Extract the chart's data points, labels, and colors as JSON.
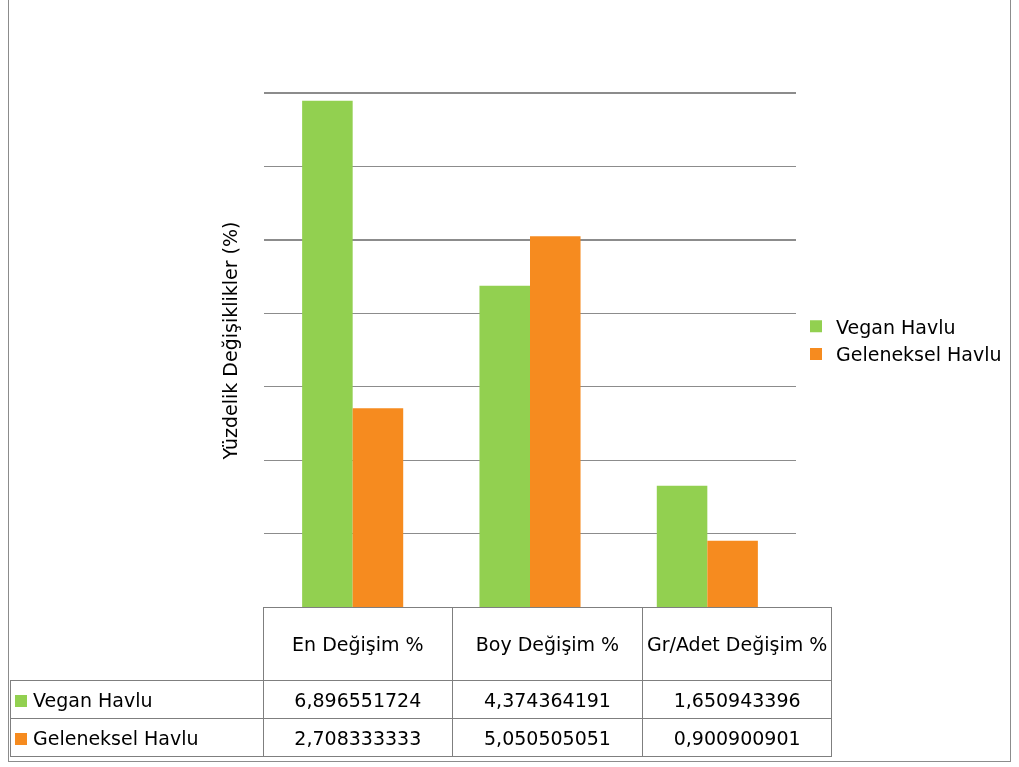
{
  "chart_data": {
    "type": "bar",
    "ylabel": "Yüzdelik Değişiklikler (%)",
    "categories": [
      "En Değişim %",
      "Boy Değişim %",
      "Gr/Adet Değişim %"
    ],
    "series": [
      {
        "name": "Vegan Havlu",
        "color": "#92d050",
        "values": [
          6.896551724,
          4.374364191,
          1.650943396
        ],
        "value_labels": [
          "6,896551724",
          "4,374364191",
          "1,650943396"
        ]
      },
      {
        "name": "Geleneksel Havlu",
        "color": "#f68b1f",
        "values": [
          2.708333333,
          5.050505051,
          0.900900901
        ],
        "value_labels": [
          "2,708333333",
          "5,050505051",
          "0,900900901"
        ]
      }
    ],
    "grid": "y",
    "legend": "right"
  }
}
